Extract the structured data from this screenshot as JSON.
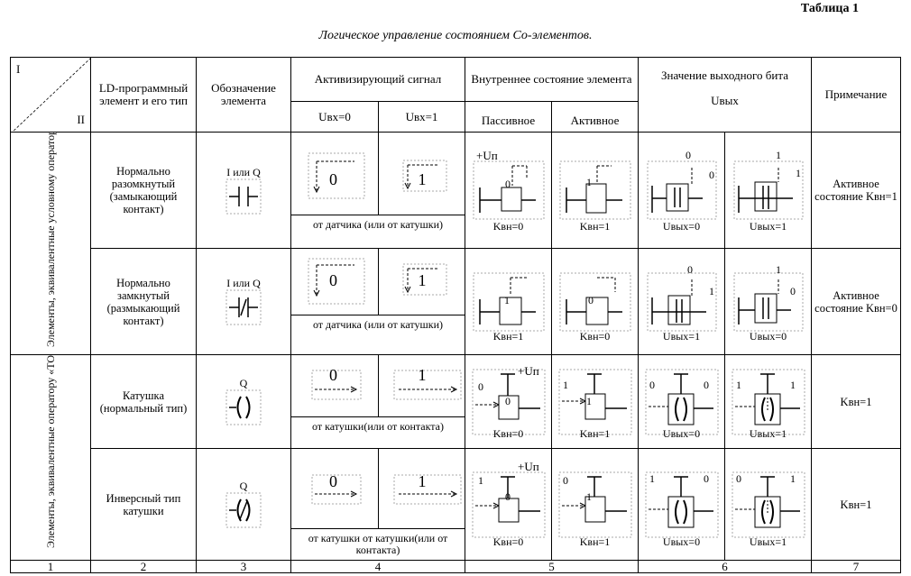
{
  "table_label": "Таблица 1",
  "caption": "Логическое управление состоянием Со-элементов.",
  "header": {
    "corner_top": "I",
    "corner_bottom": "II",
    "col2": "LD-программный элемент и его тип",
    "col3": "Обозначение элемента",
    "col4": "Активизирующий сигнал",
    "col4_a": "Uвх=0",
    "col4_b": "Uвх=1",
    "col5": "Внутреннее состояние элемента",
    "col5_a": "Пассивное",
    "col5_b": "Активное",
    "col6": "Значение выходного бита",
    "col6_sub": "Uвых",
    "col7": "Примечание"
  },
  "groups": [
    {
      "label": "Элементы, эквивалентные условному оператору «ЕСЛИ»."
    },
    {
      "label": "Элементы, эквивалентные оператору «ТОГДА» определения"
    }
  ],
  "rows": [
    {
      "type": "Нормально разомкнутый (замыкающий контакт)",
      "symbol_label": "I или Q",
      "sig0": "0",
      "sig1": "1",
      "source": "от датчика (или от катушки)",
      "in_pass": "0",
      "in_act": "1",
      "k_pass": "Kвн=0",
      "k_act": "Kвн=1",
      "u_pass_in": "0",
      "u_pass_out": "0",
      "u_act_in": "1",
      "u_act_out": "1",
      "u_pass": "Uвых=0",
      "u_act": "Uвых=1",
      "note": "Активное состояние Kвн=1"
    },
    {
      "type": "Нормально замкнутый (размыкающий контакт)",
      "symbol_label": "I или Q",
      "sig0": "0",
      "sig1": "1",
      "source": "от датчика (или от катушки)",
      "in_pass": "1",
      "in_act": "0",
      "k_pass": "Kвн=1",
      "k_act": "Kвн=0",
      "u_pass_in": "0",
      "u_pass_out": "1",
      "u_act_in": "1",
      "u_act_out": "0",
      "u_pass": "Uвых=1",
      "u_act": "Uвых=0",
      "note": "Активное состояние Kвн=0"
    },
    {
      "type": "Катушка (нормальный тип)",
      "symbol_label": "Q",
      "sig0": "0",
      "sig1": "1",
      "source": "от катушки(или от контакта)",
      "in_pass": "0",
      "in_act": "1",
      "line_pass": "0",
      "line_act": "1",
      "k_pass": "Kвн=0",
      "k_act": "Kвн=1",
      "u_pass_in": "0",
      "u_pass_out": "0",
      "u_act_in": "1",
      "u_act_out": "1",
      "u_pass": "Uвых=0",
      "u_act": "Uвых=1",
      "note": "Kвн=1"
    },
    {
      "type": "Инверсный тип катушки",
      "symbol_label": "Q",
      "sig0": "0",
      "sig1": "1",
      "source": "от катушки от катушки(или от контакта)",
      "in_pass": "0",
      "in_act": "1",
      "line_pass": "1",
      "line_act": "0",
      "k_pass": "Kвн=0",
      "k_act": "Kвн=1",
      "u_pass_in": "1",
      "u_pass_out": "0",
      "u_act_in": "0",
      "u_act_out": "1",
      "u_pass": "Uвых=0",
      "u_act": "Uвых=1",
      "note": "Kвн=1"
    }
  ],
  "supply_label": "+Uп",
  "column_numbers": [
    "1",
    "2",
    "3",
    "4",
    "5",
    "6",
    "7"
  ]
}
